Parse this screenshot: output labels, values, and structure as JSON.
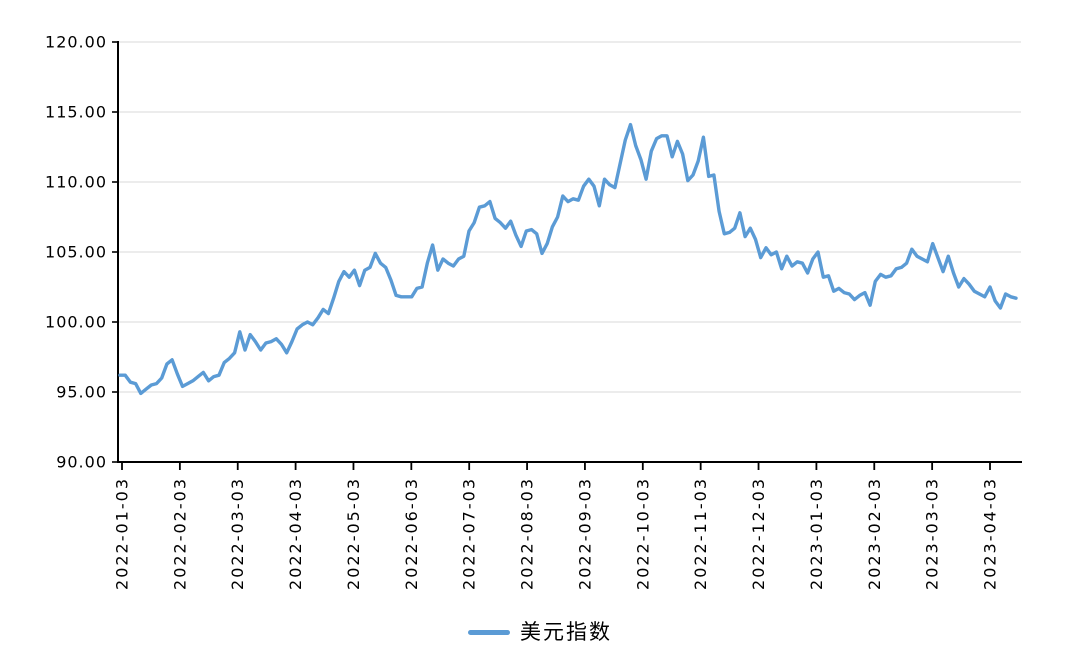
{
  "chart_data": {
    "type": "line",
    "title": "",
    "legend": {
      "position": "bottom",
      "entries": [
        "美元指数"
      ]
    },
    "y_axis": {
      "min": 90,
      "max": 120,
      "step": 5,
      "tick_labels": [
        "120.00",
        "115.00",
        "110.00",
        "105.00",
        "100.00",
        "95.00",
        "90.00"
      ]
    },
    "x_axis": {
      "tick_labels": [
        "2022-01-03",
        "2022-02-03",
        "2022-03-03",
        "2022-04-03",
        "2022-05-03",
        "2022-06-03",
        "2022-07-03",
        "2022-08-03",
        "2022-09-03",
        "2022-10-03",
        "2022-11-03",
        "2022-12-03",
        "2023-01-03",
        "2023-02-03",
        "2023-03-03",
        "2023-04-03"
      ]
    },
    "grid": true,
    "series": [
      {
        "name": "美元指数",
        "color": "#5B9BD5",
        "x": [
          "2022-01-03",
          "2022-01-05",
          "2022-01-07",
          "2022-01-11",
          "2022-01-13",
          "2022-01-17",
          "2022-01-19",
          "2022-01-21",
          "2022-01-25",
          "2022-01-27",
          "2022-01-28",
          "2022-02-01",
          "2022-02-03",
          "2022-02-07",
          "2022-02-09",
          "2022-02-11",
          "2022-02-15",
          "2022-02-17",
          "2022-02-21",
          "2022-02-23",
          "2022-02-25",
          "2022-03-01",
          "2022-03-03",
          "2022-03-07",
          "2022-03-09",
          "2022-03-11",
          "2022-03-15",
          "2022-03-17",
          "2022-03-21",
          "2022-03-23",
          "2022-03-25",
          "2022-03-29",
          "2022-03-31",
          "2022-04-01",
          "2022-04-05",
          "2022-04-07",
          "2022-04-11",
          "2022-04-13",
          "2022-04-15",
          "2022-04-19",
          "2022-04-21",
          "2022-04-25",
          "2022-04-27",
          "2022-04-28",
          "2022-04-29",
          "2022-05-02",
          "2022-05-04",
          "2022-05-06",
          "2022-05-10",
          "2022-05-12",
          "2022-05-16",
          "2022-05-18",
          "2022-05-20",
          "2022-05-24",
          "2022-05-26",
          "2022-05-31",
          "2022-06-02",
          "2022-06-06",
          "2022-06-08",
          "2022-06-10",
          "2022-06-14",
          "2022-06-16",
          "2022-06-20",
          "2022-06-22",
          "2022-06-24",
          "2022-06-28",
          "2022-06-30",
          "2022-07-05",
          "2022-07-07",
          "2022-07-11",
          "2022-07-13",
          "2022-07-14",
          "2022-07-18",
          "2022-07-20",
          "2022-07-22",
          "2022-07-26",
          "2022-07-28",
          "2022-08-01",
          "2022-08-03",
          "2022-08-05",
          "2022-08-09",
          "2022-08-10",
          "2022-08-12",
          "2022-08-16",
          "2022-08-18",
          "2022-08-22",
          "2022-08-24",
          "2022-08-26",
          "2022-08-30",
          "2022-09-01",
          "2022-09-06",
          "2022-09-08",
          "2022-09-12",
          "2022-09-13",
          "2022-09-15",
          "2022-09-19",
          "2022-09-21",
          "2022-09-23",
          "2022-09-27",
          "2022-09-29",
          "2022-10-03",
          "2022-10-04",
          "2022-10-06",
          "2022-10-10",
          "2022-10-12",
          "2022-10-14",
          "2022-10-18",
          "2022-10-20",
          "2022-10-24",
          "2022-10-26",
          "2022-10-28",
          "2022-11-01",
          "2022-11-03",
          "2022-11-07",
          "2022-11-09",
          "2022-11-10",
          "2022-11-11",
          "2022-11-15",
          "2022-11-17",
          "2022-11-21",
          "2022-11-23",
          "2022-11-28",
          "2022-11-30",
          "2022-12-02",
          "2022-12-06",
          "2022-12-08",
          "2022-12-12",
          "2022-12-14",
          "2022-12-16",
          "2022-12-20",
          "2022-12-22",
          "2022-12-28",
          "2022-12-30",
          "2023-01-03",
          "2023-01-05",
          "2023-01-09",
          "2023-01-11",
          "2023-01-13",
          "2023-01-17",
          "2023-01-19",
          "2023-01-23",
          "2023-01-25",
          "2023-01-27",
          "2023-01-31",
          "2023-02-01",
          "2023-02-03",
          "2023-02-07",
          "2023-02-09",
          "2023-02-13",
          "2023-02-15",
          "2023-02-17",
          "2023-02-21",
          "2023-02-24",
          "2023-02-28",
          "2023-03-02",
          "2023-03-06",
          "2023-03-08",
          "2023-03-10",
          "2023-03-14",
          "2023-03-16",
          "2023-03-20",
          "2023-03-22",
          "2023-03-24",
          "2023-03-28",
          "2023-03-30",
          "2023-04-03",
          "2023-04-05",
          "2023-04-10",
          "2023-04-12",
          "2023-04-13",
          "2023-04-17",
          "2023-04-19",
          "2023-04-21"
        ],
        "values": [
          96.2,
          96.2,
          95.7,
          95.6,
          94.9,
          95.2,
          95.5,
          95.6,
          96.0,
          97.0,
          97.3,
          96.3,
          95.4,
          95.6,
          95.8,
          96.1,
          96.4,
          95.8,
          96.1,
          96.2,
          97.1,
          97.4,
          97.8,
          99.3,
          98.0,
          99.1,
          98.6,
          98.0,
          98.5,
          98.6,
          98.8,
          98.4,
          97.8,
          98.6,
          99.5,
          99.8,
          100.0,
          99.8,
          100.3,
          100.9,
          100.6,
          101.7,
          102.9,
          103.6,
          103.2,
          103.7,
          102.6,
          103.7,
          103.9,
          104.9,
          104.2,
          103.9,
          103.0,
          101.9,
          101.8,
          101.8,
          101.8,
          102.4,
          102.5,
          104.2,
          105.5,
          103.7,
          104.5,
          104.2,
          104.0,
          104.5,
          104.7,
          106.5,
          107.1,
          108.2,
          108.3,
          108.6,
          107.4,
          107.1,
          106.7,
          107.2,
          106.2,
          105.4,
          106.5,
          106.6,
          106.3,
          104.9,
          105.6,
          106.8,
          107.5,
          109.0,
          108.6,
          108.8,
          108.7,
          109.7,
          110.2,
          109.7,
          108.3,
          110.2,
          109.8,
          109.6,
          111.3,
          113.0,
          114.1,
          112.6,
          111.6,
          110.2,
          112.2,
          113.1,
          113.3,
          113.3,
          111.8,
          112.9,
          112.0,
          110.1,
          110.5,
          111.5,
          113.2,
          110.4,
          110.5,
          107.9,
          106.3,
          106.4,
          106.7,
          107.8,
          106.1,
          106.7,
          105.9,
          104.6,
          105.3,
          104.8,
          105.0,
          103.8,
          104.7,
          104.0,
          104.3,
          104.2,
          103.5,
          104.5,
          105.0,
          103.2,
          103.3,
          102.2,
          102.4,
          102.1,
          102.0,
          101.6,
          101.9,
          102.1,
          101.2,
          102.9,
          103.4,
          103.2,
          103.3,
          103.8,
          103.9,
          104.2,
          105.2,
          104.7,
          104.5,
          104.3,
          105.6,
          104.6,
          103.6,
          104.7,
          103.5,
          102.5,
          103.1,
          102.7,
          102.2,
          102.0,
          101.8,
          102.5,
          101.5,
          101.0,
          102.0,
          101.8,
          101.7
        ]
      }
    ]
  },
  "styles": {
    "line_color": "#5B9BD5",
    "grid_color": "#D9D9D9",
    "axis_color": "#000000",
    "label_color": "#000000",
    "background": "#FFFFFF"
  }
}
